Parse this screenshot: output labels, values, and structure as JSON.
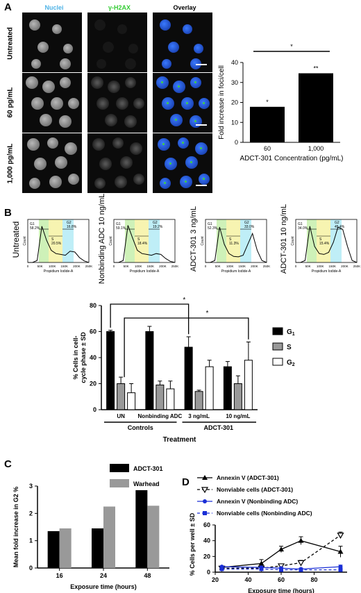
{
  "panelA": {
    "label": "A",
    "columns": [
      "Nuclei",
      "γ-H2AX",
      "Overlay"
    ],
    "rows": [
      "Untreated",
      "60 pg/mL",
      "1,000 pg/mL"
    ],
    "colors": {
      "nuclei": "#4fb3e6",
      "h2ax": "#33cc33",
      "blue": "#1f4fe0"
    },
    "chart_data": {
      "type": "bar",
      "categories": [
        "60",
        "1,000"
      ],
      "values": [
        17.8,
        34.6
      ],
      "bar_labels": [
        "*",
        "**"
      ],
      "significance": "*",
      "xlabel": "ADCT-301 Concentration (pg/mL)",
      "ylabel": "Fold increase in foci/cell",
      "ylim": [
        0,
        40
      ],
      "yticks": [
        "0",
        "10",
        "20",
        "30",
        "40"
      ]
    }
  },
  "panelB": {
    "label": "B",
    "flow_plots": [
      {
        "label": "Untreated",
        "g1": "58.2%",
        "s": "20.5%",
        "g2": "16.8%"
      },
      {
        "label": "Nonbinding ADC 10 ng/mL",
        "g1": "59.1%",
        "s": "18.4%",
        "g2": "19.2%"
      },
      {
        "label": "ADCT-301 3 ng/mL",
        "g1": "52.3%",
        "s": "11.3%",
        "g2": "33.0%"
      },
      {
        "label": "ADCT-301 10 ng/mL",
        "g1": "34.0%",
        "s": "15.4%",
        "g2": "45.4%"
      }
    ],
    "flow_axis": {
      "xlabel": "Propidium Iodide-A",
      "ylabel": "Count",
      "xticks": [
        "0",
        "50K",
        "100K",
        "150K",
        "200K",
        "250K"
      ],
      "gate_g1": "G1",
      "gate_s": "S",
      "gate_g2": "G2"
    },
    "chart_data": {
      "type": "bar",
      "categories": [
        "UN",
        "Nonbinding ADC",
        "3 ng/mL",
        "10 ng/mL"
      ],
      "series": [
        {
          "name": "G1",
          "values": [
            60,
            60,
            48,
            33
          ],
          "sd": [
            1,
            4,
            8,
            4
          ]
        },
        {
          "name": "S",
          "values": [
            20,
            19,
            14,
            20
          ],
          "sd": [
            5,
            3,
            1,
            6
          ]
        },
        {
          "name": "G2",
          "values": [
            13,
            16,
            33,
            38
          ],
          "sd": [
            7,
            6,
            5,
            14
          ]
        }
      ],
      "groups": [
        "Controls",
        "ADCT-301"
      ],
      "ylabel": "% Cells in cell-cycle phase ± SD",
      "xlabel": "Treatment",
      "ylim": [
        0,
        80
      ],
      "yticks": [
        "0",
        "20",
        "40",
        "60",
        "80"
      ],
      "significance": [
        "*",
        "*"
      ],
      "colors": {
        "G1": "#000000",
        "S": "#999999",
        "G2": "#ffffff"
      }
    }
  },
  "panelC": {
    "label": "C",
    "chart_data": {
      "type": "bar",
      "categories": [
        "16",
        "24",
        "48"
      ],
      "series": [
        {
          "name": "ADCT-301",
          "values": [
            1.35,
            1.45,
            2.85
          ]
        },
        {
          "name": "Warhead",
          "values": [
            1.45,
            2.25,
            2.28
          ]
        }
      ],
      "xlabel": "Exposure time (hours)",
      "ylabel": "Mean fold increase in G2 %",
      "ylim": [
        0,
        3
      ],
      "yticks": [
        "0",
        "1",
        "2",
        "3"
      ],
      "colors": {
        "ADCT-301": "#000000",
        "Warhead": "#999999"
      }
    }
  },
  "panelD": {
    "label": "D",
    "chart_data": {
      "type": "line",
      "x": [
        24,
        48,
        60,
        72,
        96
      ],
      "series": [
        {
          "name": "Annexin V (ADCT-301)",
          "values": [
            6,
            11,
            29,
            40,
            26
          ],
          "sd": [
            1,
            5,
            4,
            5,
            7
          ],
          "color": "#000000",
          "dash": "",
          "marker": "triangle-up"
        },
        {
          "name": "Nonviable cells (ADCT-301)",
          "values": [
            5,
            5,
            8,
            12,
            47
          ],
          "sd": [
            1,
            1,
            2,
            3,
            4
          ],
          "color": "#000000",
          "dash": "4,3",
          "marker": "triangle-down"
        },
        {
          "name": "Annexin V (Nonbinding ADC)",
          "values": [
            7,
            6,
            5,
            4,
            7
          ],
          "sd": [
            1,
            1,
            1,
            1,
            2
          ],
          "color": "#1a2fd6",
          "dash": "",
          "marker": "circle"
        },
        {
          "name": "Nonviable cells (Nonbinding ADC)",
          "values": [
            4,
            4,
            3,
            3,
            3
          ],
          "sd": [
            1,
            1,
            1,
            1,
            1
          ],
          "color": "#1a2fd6",
          "dash": "4,3",
          "marker": "square"
        }
      ],
      "xlabel": "Exposure time (hours)",
      "ylabel": "% Cells per well ± SD",
      "xlim": [
        20,
        100
      ],
      "xticks": [
        "20",
        "40",
        "60",
        "80"
      ],
      "ylim": [
        0,
        60
      ],
      "yticks": [
        "0",
        "20",
        "40",
        "60"
      ]
    }
  }
}
